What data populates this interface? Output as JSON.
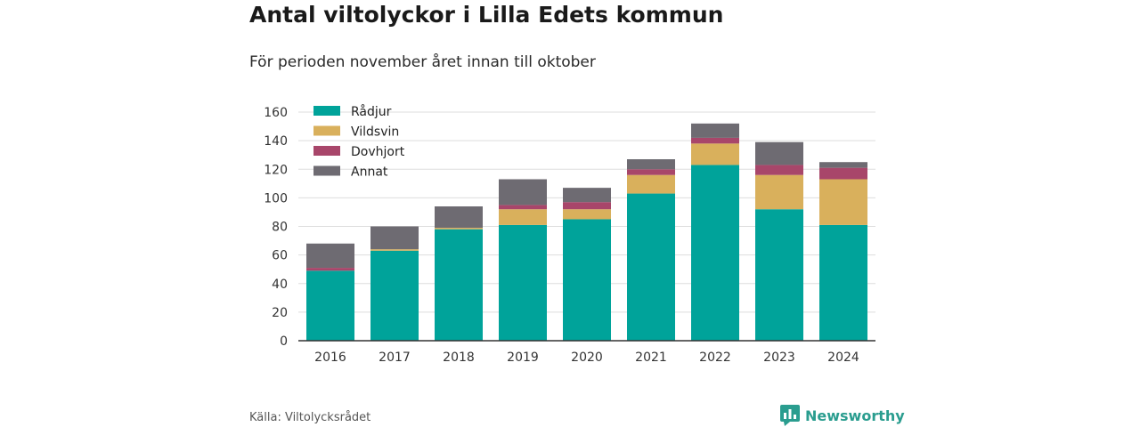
{
  "header": {
    "title": "Antal viltolyckor i Lilla Edets kommun",
    "subtitle": "För perioden november året innan till oktober"
  },
  "footer": {
    "source": "Källa: Viltolycksrådet",
    "brand": "Newsworthy",
    "brand_icon": "bar-chart-speech-icon"
  },
  "colors": {
    "Rådjur": "#00a39a",
    "Vildsvin": "#d9b05c",
    "Dovhjort": "#a8466a",
    "Annat": "#6e6b72",
    "grid": "#dddddd",
    "axis": "#333333",
    "brand": "#2a9d8f"
  },
  "chart_data": {
    "type": "bar",
    "stacked": true,
    "categories": [
      "2016",
      "2017",
      "2018",
      "2019",
      "2020",
      "2021",
      "2022",
      "2023",
      "2024"
    ],
    "series": [
      {
        "name": "Rådjur",
        "values": [
          49,
          63,
          78,
          81,
          85,
          103,
          123,
          92,
          81
        ]
      },
      {
        "name": "Vildsvin",
        "values": [
          0,
          1,
          1,
          11,
          7,
          13,
          15,
          24,
          32
        ]
      },
      {
        "name": "Dovhjort",
        "values": [
          2,
          0,
          0,
          3,
          5,
          4,
          4,
          7,
          8
        ]
      },
      {
        "name": "Annat",
        "values": [
          17,
          16,
          15,
          18,
          10,
          7,
          10,
          16,
          4
        ]
      }
    ],
    "ylim": [
      0,
      160
    ],
    "yticks": [
      0,
      20,
      40,
      60,
      80,
      100,
      120,
      140,
      160
    ],
    "grid": true,
    "legend": "top-left"
  }
}
